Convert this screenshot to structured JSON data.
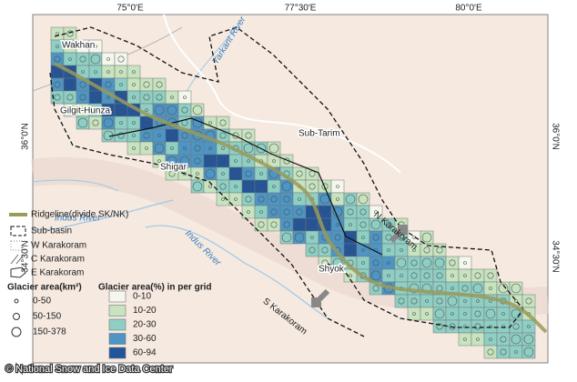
{
  "map": {
    "lon_labels": [
      "75°0'E",
      "77°30'E",
      "80°0'E"
    ],
    "lat_labels": [
      "36°0'N",
      "34°30'N"
    ],
    "places": [
      "Wakhan",
      "Gilgit-Hunza",
      "Shigar",
      "Sub-Tarim",
      "Shyok"
    ],
    "rivers": [
      "Yarkant River",
      "Indus River",
      "Indus River"
    ],
    "regions": [
      "N Karakoram",
      "S Karakoram"
    ]
  },
  "legend": {
    "lines": [
      "Ridgeline(divide SK/NK)",
      "Sub-basin",
      "W Karakoram",
      "C Karakoram",
      "E Karakoram"
    ],
    "area_km2": {
      "title": "Glacier area(km²)",
      "classes": [
        "0-50",
        "50-150",
        "150-378"
      ]
    },
    "area_pct": {
      "title": "Glacier area(%) in per grid",
      "classes": [
        "0-10",
        "10-20",
        "20-30",
        "30-60",
        "60-94"
      ],
      "colors": [
        "#f4f7ec",
        "#c7e3bf",
        "#8ecfc4",
        "#4c95c4",
        "#21549a"
      ]
    }
  },
  "credit": "© National Snow and Ice Data Center"
}
